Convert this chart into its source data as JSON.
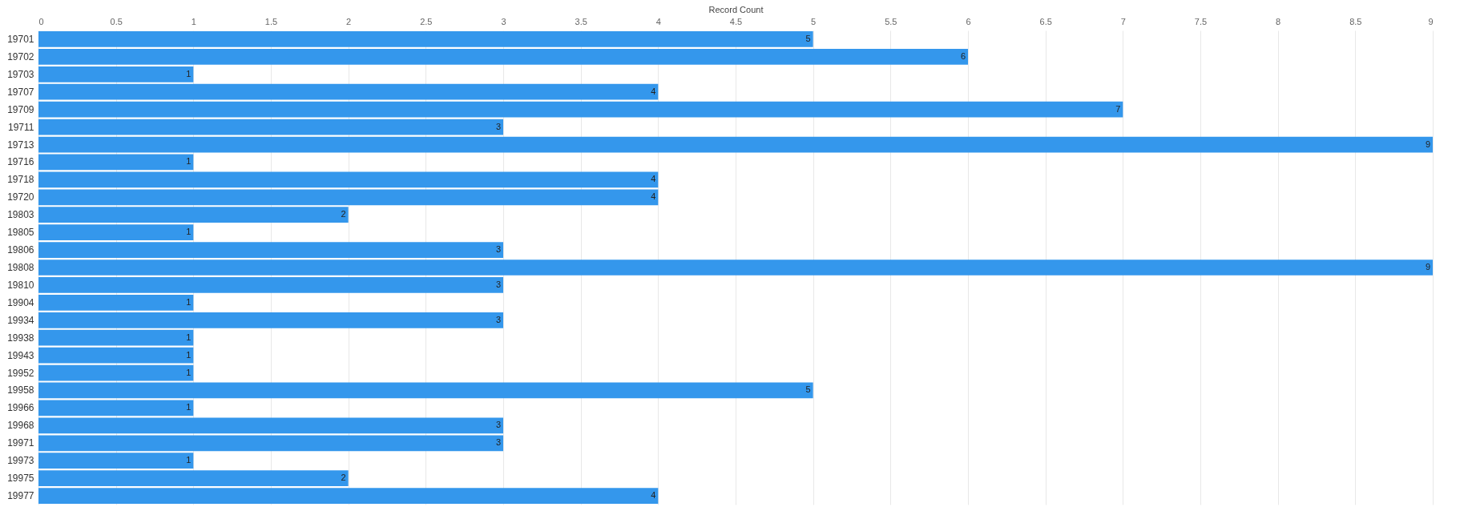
{
  "chart_data": {
    "type": "bar",
    "orientation": "horizontal",
    "xlabel": "Record Count",
    "categories": [
      "19701",
      "19702",
      "19703",
      "19707",
      "19709",
      "19711",
      "19713",
      "19716",
      "19718",
      "19720",
      "19803",
      "19805",
      "19806",
      "19808",
      "19810",
      "19904",
      "19934",
      "19938",
      "19943",
      "19952",
      "19958",
      "19966",
      "19968",
      "19971",
      "19973",
      "19975",
      "19977"
    ],
    "values": [
      5,
      6,
      1,
      4,
      7,
      3,
      9,
      1,
      4,
      4,
      2,
      1,
      3,
      9,
      3,
      1,
      3,
      1,
      1,
      1,
      5,
      1,
      3,
      3,
      1,
      2,
      4
    ],
    "color": "#3497ec",
    "xlim": [
      0,
      9
    ],
    "xticks": [
      0,
      0.5,
      1,
      1.5,
      2,
      2.5,
      3,
      3.5,
      4,
      4.5,
      5,
      5.5,
      6,
      6.5,
      7,
      7.5,
      8,
      8.5,
      9
    ],
    "grid": "x",
    "data_labels": true
  }
}
